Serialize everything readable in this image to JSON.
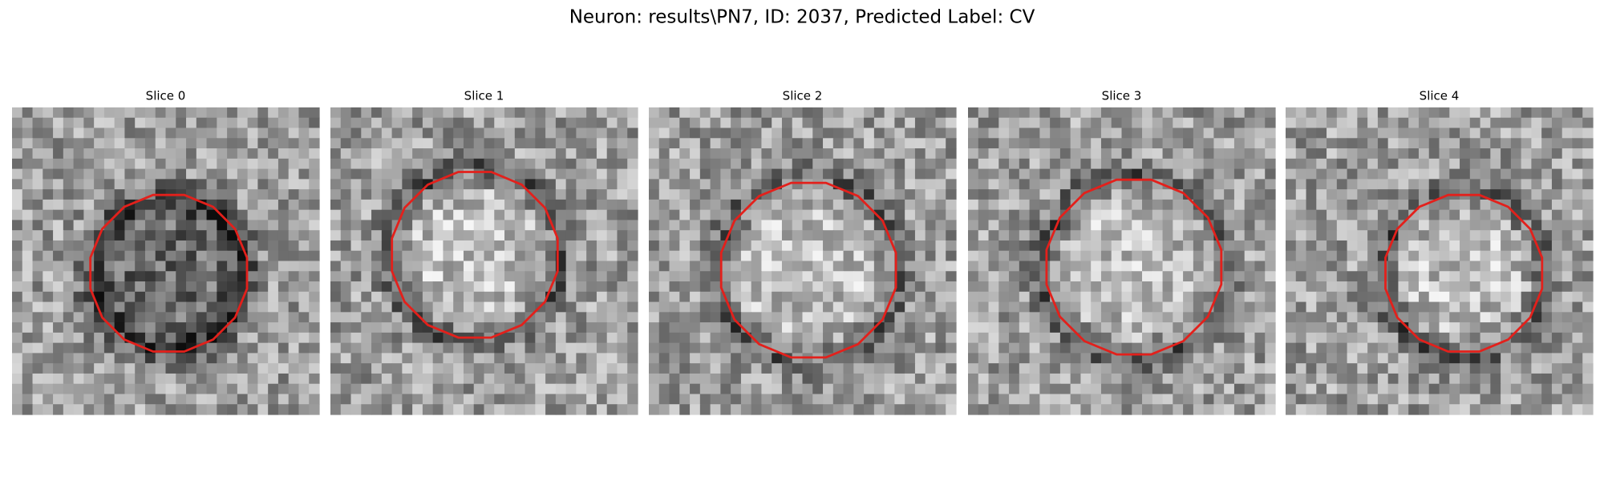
{
  "title": "Neuron: results\\PN7, ID: 2037, Predicted Label: CV",
  "panels": [
    {
      "title": "Slice 0"
    },
    {
      "title": "Slice 1"
    },
    {
      "title": "Slice 2"
    },
    {
      "title": "Slice 3"
    },
    {
      "title": "Slice 4"
    }
  ]
}
